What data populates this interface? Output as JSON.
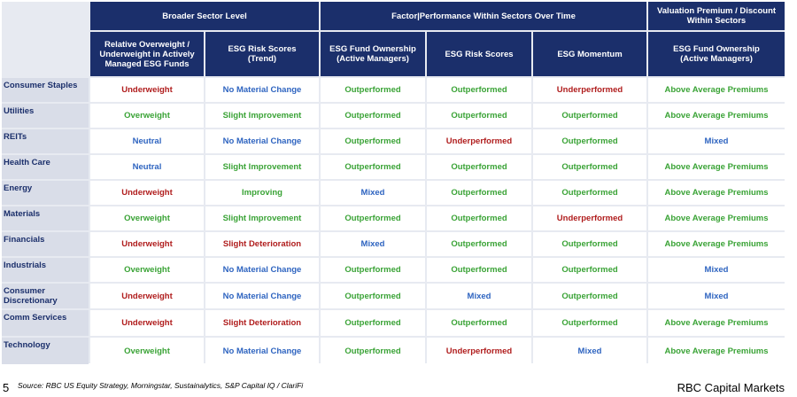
{
  "groups": {
    "broader": "Broader Sector Level",
    "factor": "Factor|Performance  Within Sectors Over Time",
    "valuation": "Valuation Premium / Discount Within Sectors"
  },
  "columns": [
    "Relative Overweight / Underweight in Actively Managed ESG Funds",
    "ESG Risk Scores (Trend)",
    "ESG Fund Ownership (Active Managers)",
    "ESG Risk Scores",
    "ESG Momentum",
    "ESG Fund Ownership (Active Managers)"
  ],
  "rows": [
    {
      "sector": "Consumer Staples",
      "cells": [
        "Underweight",
        "No Material Change",
        "Outperformed",
        "Outperformed",
        "Underperformed",
        "Above Average Premiums"
      ]
    },
    {
      "sector": "Utilities",
      "cells": [
        "Overweight",
        "Slight Improvement",
        "Outperformed",
        "Outperformed",
        "Outperformed",
        "Above Average Premiums"
      ]
    },
    {
      "sector": "REITs",
      "cells": [
        "Neutral",
        "No Material Change",
        "Outperformed",
        "Underperformed",
        "Outperformed",
        "Mixed"
      ]
    },
    {
      "sector": "Health Care",
      "cells": [
        "Neutral",
        "Slight Improvement",
        "Outperformed",
        "Outperformed",
        "Outperformed",
        "Above Average Premiums"
      ]
    },
    {
      "sector": "Energy",
      "cells": [
        "Underweight",
        "Improving",
        "Mixed",
        "Outperformed",
        "Outperformed",
        "Above Average Premiums"
      ]
    },
    {
      "sector": "Materials",
      "cells": [
        "Overweight",
        "Slight Improvement",
        "Outperformed",
        "Outperformed",
        "Underperformed",
        "Above Average Premiums"
      ]
    },
    {
      "sector": "Financials",
      "cells": [
        "Underweight",
        "Slight Deterioration",
        "Mixed",
        "Outperformed",
        "Outperformed",
        "Above Average Premiums"
      ]
    },
    {
      "sector": "Industrials",
      "cells": [
        "Overweight",
        "No Material Change",
        "Outperformed",
        "Outperformed",
        "Outperformed",
        "Mixed"
      ]
    },
    {
      "sector": "Consumer Discretionary",
      "cells": [
        "Underweight",
        "No Material Change",
        "Outperformed",
        "Mixed",
        "Outperformed",
        "Mixed"
      ]
    },
    {
      "sector": "Comm Services",
      "cells": [
        "Underweight",
        "Slight Deterioration",
        "Outperformed",
        "Outperformed",
        "Outperformed",
        "Above Average Premiums"
      ]
    },
    {
      "sector": "Technology",
      "cells": [
        "Overweight",
        "No Material Change",
        "Outperformed",
        "Underperformed",
        "Mixed",
        "Above Average Premiums"
      ]
    }
  ],
  "colors": {
    "Underweight": "red",
    "Overweight": "green",
    "Neutral": "blue",
    "No Material Change": "blue",
    "Slight Improvement": "green",
    "Improving": "green",
    "Slight Deterioration": "red",
    "Outperformed": "green",
    "Underperformed": "red",
    "Mixed": "blue",
    "Above Average Premiums": "green"
  },
  "footer": {
    "page_number": "5",
    "source": "Source: RBC US Equity Strategy, Morningstar, Sustainalytics, S&P Capital IQ / ClariFi",
    "brand": "RBC Capital Markets"
  }
}
